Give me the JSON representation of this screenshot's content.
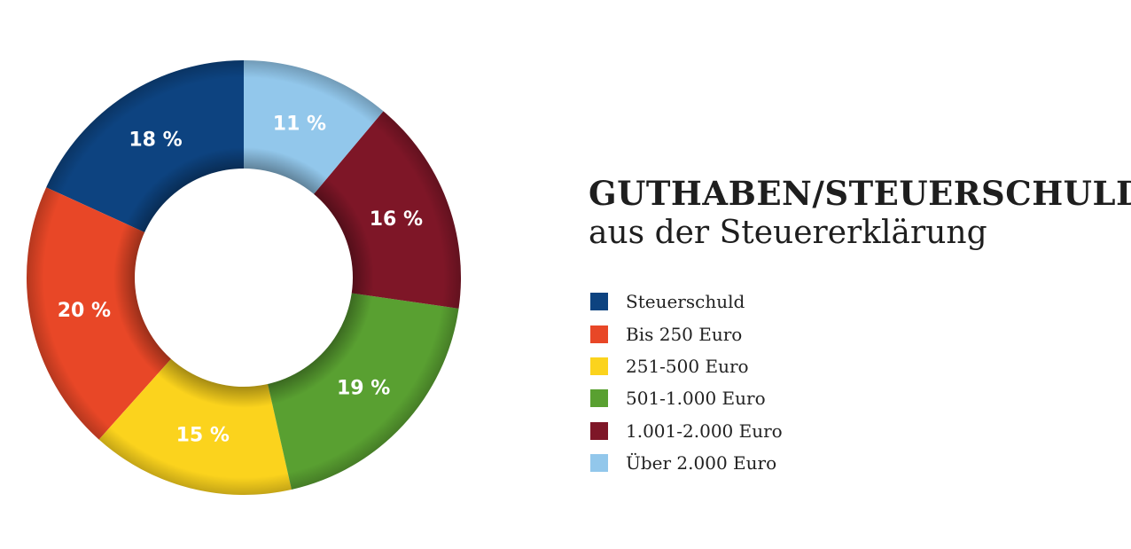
{
  "chart_data": {
    "type": "pie",
    "donut": true,
    "title": "GUTHABEN/STEUERSCHULD",
    "subtitle": "aus der Steuererklärung",
    "categories": [
      "Steuerschuld",
      "Bis 250 Euro",
      "251-500 Euro",
      "501-1.000 Euro",
      "1.001-2.000 Euro",
      "Über 2.000 Euro"
    ],
    "values": [
      18,
      20,
      15,
      19,
      16,
      11
    ],
    "value_labels": [
      "18 %",
      "20 %",
      "15 %",
      "19 %",
      "16 %",
      "11 %"
    ],
    "colors": [
      "#0d4380",
      "#e84727",
      "#fbd31d",
      "#59a031",
      "#7e1627",
      "#92c7eb"
    ],
    "legend_position": "right"
  }
}
